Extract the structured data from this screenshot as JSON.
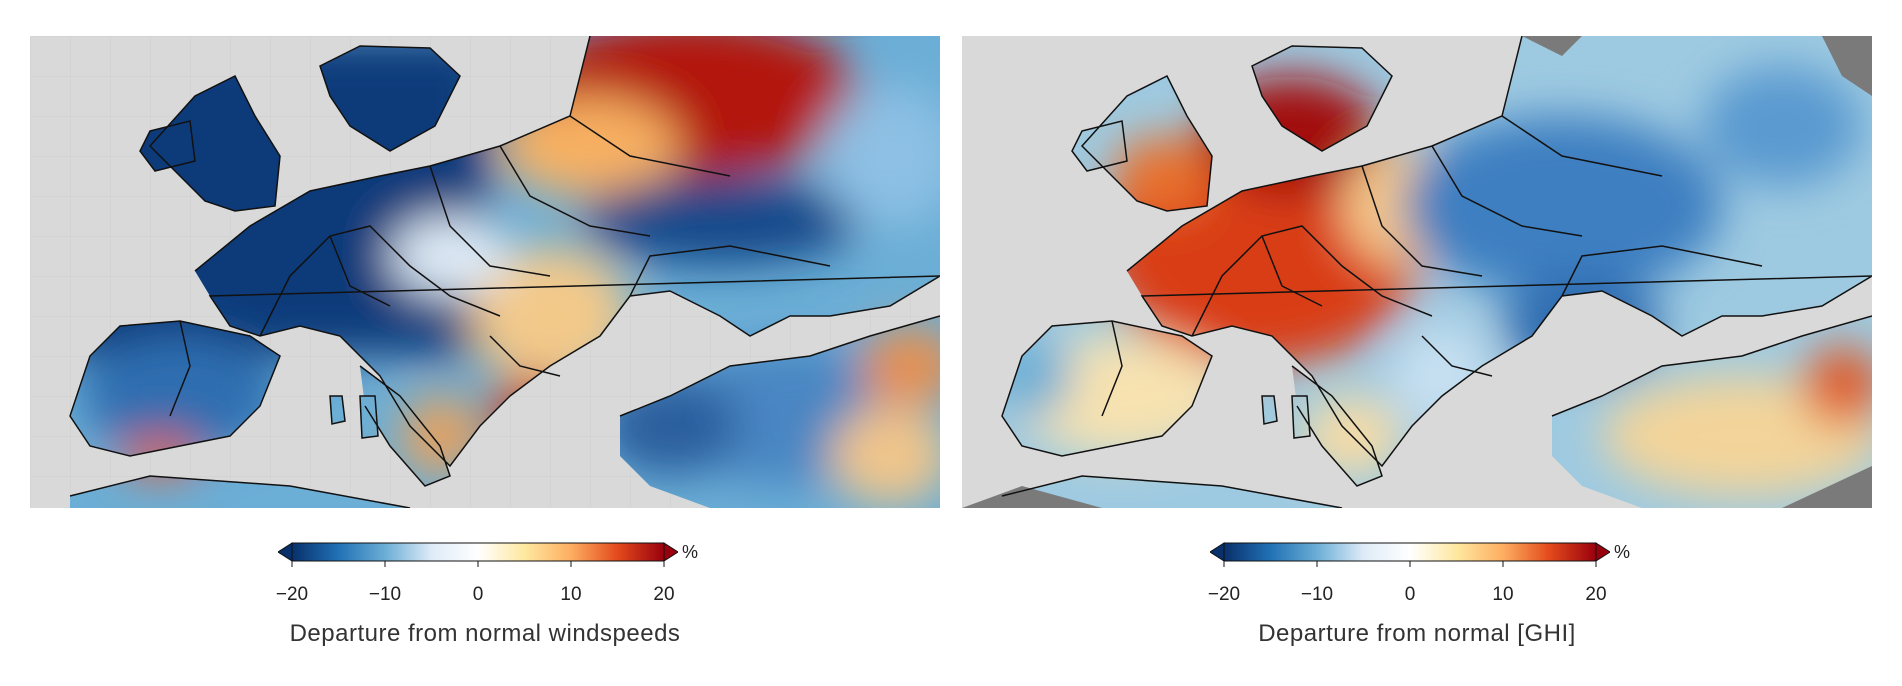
{
  "figures": [
    {
      "id": "windspeed",
      "colorbar": {
        "title": "Departure from normal windspeeds",
        "unit": "%",
        "ticks": [
          "−20",
          "−10",
          "0",
          "10",
          "20"
        ],
        "min": -20,
        "max": 20,
        "colors": [
          "#08306b",
          "#2171b5",
          "#6baed6",
          "#deebf7",
          "#ffffff",
          "#fee8a0",
          "#fdae61",
          "#e34a1c",
          "#99000d"
        ]
      }
    },
    {
      "id": "ghi",
      "colorbar": {
        "title": "Departure from normal [GHI]",
        "unit": "%",
        "ticks": [
          "−20",
          "−10",
          "0",
          "10",
          "20"
        ],
        "min": -20,
        "max": 20,
        "colors": [
          "#08306b",
          "#2171b5",
          "#6baed6",
          "#deebf7",
          "#ffffff",
          "#fee8a0",
          "#fdae61",
          "#e34a1c",
          "#99000d"
        ]
      }
    }
  ],
  "map_colors": {
    "sea": "#d9d9d9",
    "border": "#111111",
    "no_data": "#7a7a7a"
  }
}
